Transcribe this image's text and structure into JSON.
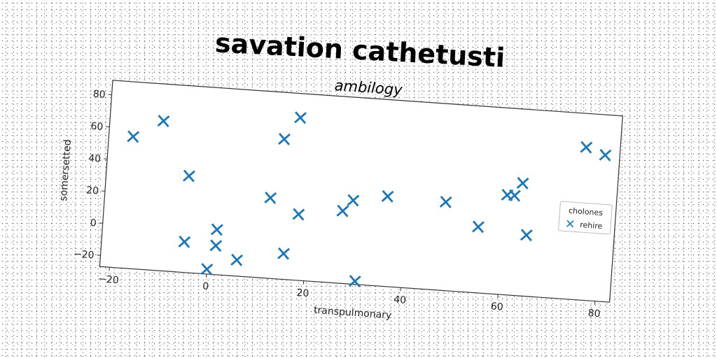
{
  "title": "savation cathetusti",
  "chart_data": {
    "type": "scatter",
    "title": "ambilogy",
    "xlabel": "transpulmonary",
    "ylabel": "somersetted",
    "xlim": [
      -22,
      83
    ],
    "ylim": [
      -27,
      89
    ],
    "xticks": [
      -20,
      0,
      20,
      40,
      60,
      80
    ],
    "yticks": [
      -20,
      0,
      20,
      40,
      60,
      80
    ],
    "grid": false,
    "legend": {
      "title": "cholones",
      "position": "right"
    },
    "series": [
      {
        "name": "rehire",
        "color": "#1f77b4",
        "marker": "x-filled",
        "points": [
          [
            -17,
            55
          ],
          [
            -11,
            66
          ],
          [
            -5,
            33
          ],
          [
            -5,
            -8
          ],
          [
            0,
            -24
          ],
          [
            1.5,
            1
          ],
          [
            1.5,
            -9
          ],
          [
            6,
            -17
          ],
          [
            12,
            23
          ],
          [
            14,
            60
          ],
          [
            15.5,
            -11
          ],
          [
            17,
            74
          ],
          [
            18,
            14
          ],
          [
            27,
            18
          ],
          [
            29,
            25
          ],
          [
            30.5,
            -25
          ],
          [
            36,
            29
          ],
          [
            48,
            28
          ],
          [
            55,
            14
          ],
          [
            60.5,
            35
          ],
          [
            62,
            35
          ],
          [
            63.5,
            43
          ],
          [
            65,
            11
          ],
          [
            76,
            68
          ],
          [
            80,
            64
          ]
        ]
      }
    ]
  }
}
